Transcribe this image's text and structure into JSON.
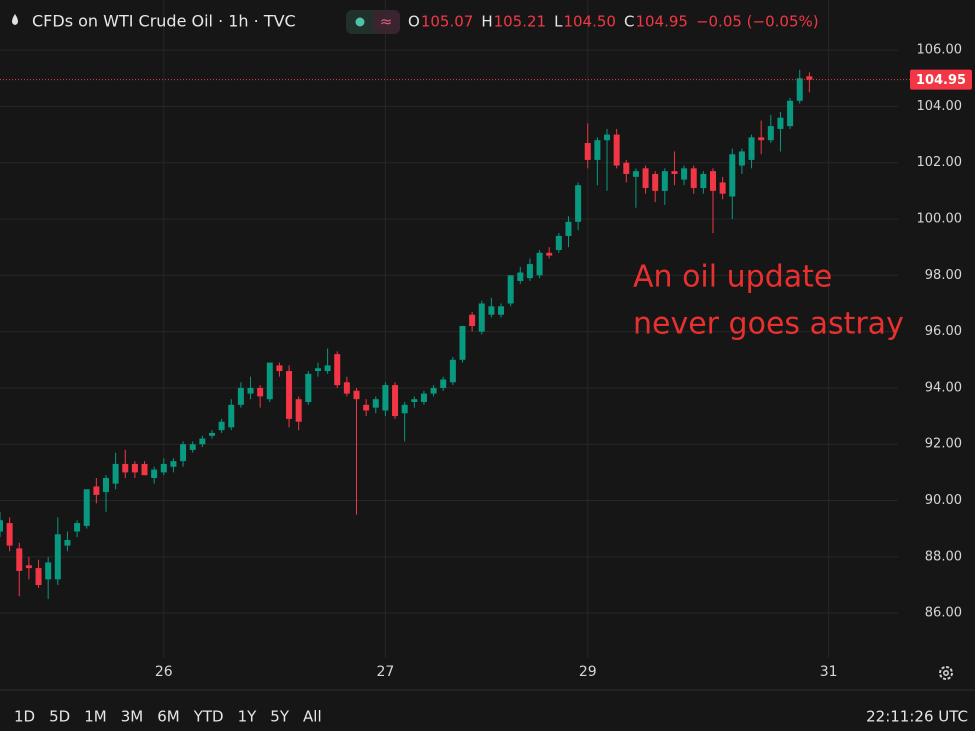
{
  "chart_data": {
    "type": "candlestick",
    "header": {
      "symbol": "CFDs on WTI Crude Oil · 1h · TVC",
      "open_key": "O",
      "open": "105.07",
      "high_key": "H",
      "high": "105.21",
      "low_key": "L",
      "low": "104.50",
      "close_key": "C",
      "close": "104.95",
      "change": "−0.05 (−0.05%)"
    },
    "last_price_label": "104.95",
    "annotation": [
      "An oil update",
      "never goes astray"
    ],
    "up_color": "#089981",
    "down_color": "#f23645",
    "open": [
      88.9,
      89.2,
      88.3,
      87.7,
      87.6,
      87.2,
      87.2,
      88.4,
      88.9,
      89.1,
      90.5,
      90.3,
      90.6,
      91.3,
      91.3,
      91.3,
      90.8,
      91.0,
      91.2,
      91.4,
      91.8,
      92.0,
      92.3,
      92.5,
      92.6,
      93.4,
      93.8,
      94.0,
      93.6,
      94.8,
      94.6,
      93.6,
      93.5,
      94.6,
      94.6,
      95.2,
      94.2,
      93.9,
      93.4,
      93.3,
      93.2,
      94.1,
      93.1,
      93.5,
      93.5,
      93.8,
      94.0,
      94.2,
      95.0,
      96.6,
      96.0,
      96.6,
      96.6,
      97.0,
      97.8,
      97.9,
      98.0,
      98.8,
      98.9,
      99.4,
      99.9,
      102.7,
      102.1,
      102.8,
      103.0,
      102.0,
      101.5,
      101.8,
      101.6,
      101.0,
      101.7,
      101.4,
      101.8,
      101.1,
      101.7,
      101.3,
      100.8,
      101.9,
      102.1,
      102.9,
      102.8,
      103.2,
      103.3,
      104.2,
      105.07
    ],
    "high": [
      89.6,
      89.4,
      88.5,
      88.0,
      87.9,
      88.0,
      89.4,
      88.9,
      89.3,
      90.4,
      90.8,
      90.9,
      91.7,
      91.8,
      91.4,
      91.4,
      91.2,
      91.5,
      91.5,
      92.1,
      92.1,
      92.3,
      92.5,
      92.9,
      93.6,
      94.2,
      94.4,
      94.1,
      94.9,
      94.9,
      94.8,
      93.7,
      94.6,
      94.9,
      95.4,
      95.3,
      94.4,
      94.0,
      93.6,
      93.7,
      94.2,
      94.2,
      93.5,
      93.7,
      93.9,
      94.1,
      94.4,
      95.1,
      96.2,
      96.7,
      97.1,
      97.2,
      97.0,
      98.0,
      98.3,
      98.6,
      98.9,
      99.0,
      99.5,
      100.1,
      101.3,
      103.4,
      102.9,
      103.2,
      103.2,
      102.1,
      101.8,
      101.9,
      101.7,
      101.8,
      102.4,
      101.9,
      101.9,
      101.7,
      101.8,
      101.5,
      102.5,
      102.5,
      103.0,
      103.5,
      103.7,
      103.8,
      104.3,
      105.3,
      105.21
    ],
    "low": [
      88.7,
      88.2,
      86.6,
      87.2,
      86.9,
      86.5,
      87.0,
      88.2,
      88.7,
      89.0,
      89.9,
      89.6,
      90.4,
      90.8,
      90.8,
      90.9,
      90.6,
      90.9,
      91.0,
      91.2,
      91.7,
      91.9,
      92.2,
      92.4,
      92.5,
      93.3,
      93.6,
      93.3,
      93.5,
      94.4,
      92.6,
      92.5,
      93.4,
      94.4,
      94.5,
      94.0,
      93.7,
      89.5,
      93.0,
      93.1,
      93.0,
      92.9,
      92.1,
      93.3,
      93.4,
      93.7,
      93.9,
      94.1,
      94.9,
      96.0,
      95.9,
      96.5,
      96.5,
      96.9,
      97.7,
      97.8,
      97.9,
      98.6,
      98.8,
      99.0,
      99.6,
      101.8,
      101.2,
      101.0,
      101.8,
      101.3,
      100.4,
      100.9,
      100.6,
      100.5,
      101.2,
      101.2,
      100.9,
      100.9,
      99.5,
      100.7,
      100.0,
      101.6,
      101.8,
      102.3,
      102.7,
      102.4,
      103.2,
      104.1,
      104.5
    ],
    "close": [
      89.3,
      88.4,
      87.5,
      87.6,
      87.0,
      87.8,
      88.8,
      88.6,
      89.2,
      90.4,
      90.2,
      90.8,
      91.3,
      91.0,
      91.0,
      90.9,
      91.1,
      91.3,
      91.4,
      92.0,
      92.0,
      92.2,
      92.4,
      92.8,
      93.4,
      94.0,
      94.0,
      93.7,
      94.9,
      94.6,
      92.9,
      92.8,
      94.5,
      94.7,
      94.8,
      94.1,
      93.8,
      93.6,
      93.2,
      93.6,
      94.1,
      93.0,
      93.4,
      93.6,
      93.8,
      94.0,
      94.3,
      95.0,
      96.2,
      96.2,
      97.0,
      96.9,
      96.9,
      98.0,
      98.1,
      98.4,
      98.8,
      98.7,
      99.4,
      99.9,
      101.2,
      102.1,
      102.8,
      103.0,
      101.9,
      101.6,
      101.7,
      101.1,
      101.0,
      101.7,
      101.6,
      101.8,
      101.1,
      101.6,
      101.0,
      100.9,
      102.3,
      102.4,
      102.9,
      102.8,
      103.3,
      103.6,
      104.2,
      105.0,
      104.95
    ],
    "xlim": [
      0,
      93.2
    ],
    "xticks": [
      {
        "value": 17,
        "label": "26"
      },
      {
        "value": 40,
        "label": "27"
      },
      {
        "value": 61,
        "label": "29"
      },
      {
        "value": 86,
        "label": "31"
      }
    ],
    "ylim": [
      83.27,
      107.78
    ],
    "yticks": [
      {
        "value": 86,
        "label": "86.00"
      },
      {
        "value": 88,
        "label": "88.00"
      },
      {
        "value": 90,
        "label": "90.00"
      },
      {
        "value": 92,
        "label": "92.00"
      },
      {
        "value": 94,
        "label": "94.00"
      },
      {
        "value": 96,
        "label": "96.00"
      },
      {
        "value": 98,
        "label": "98.00"
      },
      {
        "value": 100,
        "label": "100.00"
      },
      {
        "value": 102,
        "label": "102.00"
      },
      {
        "value": 104,
        "label": "104.00"
      },
      {
        "value": 106,
        "label": "106.00"
      }
    ],
    "grid": true,
    "ranges": [
      "1D",
      "5D",
      "1M",
      "3M",
      "6M",
      "YTD",
      "1Y",
      "5Y",
      "All"
    ],
    "clock": "22:11:26 UTC"
  }
}
